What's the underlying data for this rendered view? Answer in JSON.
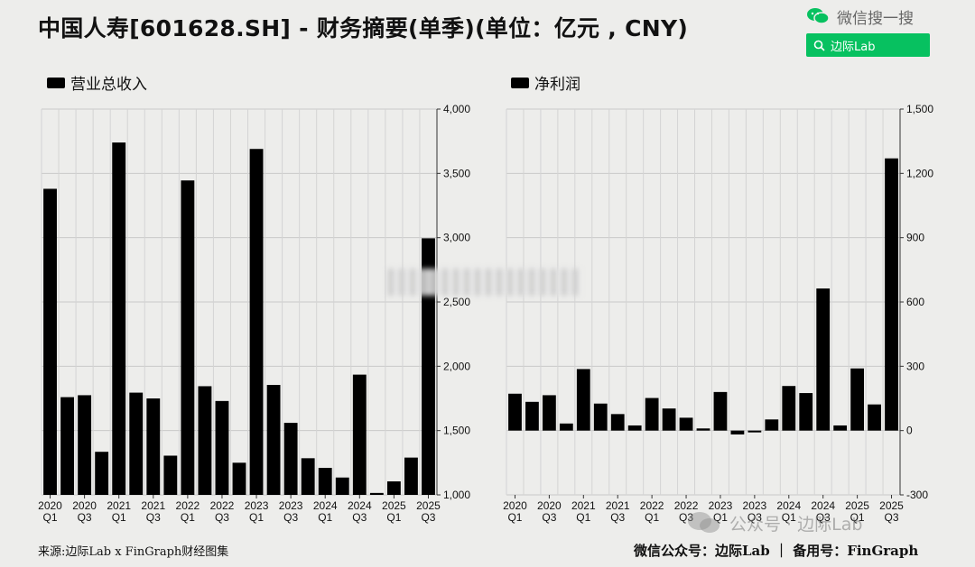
{
  "title": "中国人寿[601628.SH] - 财务摘要(单季)(单位：亿元 , CNY)",
  "wechat_search": {
    "text": "微信搜一搜",
    "button_label": "边际Lab"
  },
  "footer": {
    "source": "来源:边际Lab x FinGraph财经图集",
    "right": "微信公众号：边际Lab  ｜  备用号：FinGraph"
  },
  "watermark": "公众号 · 边际Lab",
  "colors": {
    "bar": "#000000",
    "background": "#ededeb",
    "grid": "#c9c9c9",
    "wechat_green": "#07c160"
  },
  "chart_data": [
    {
      "type": "bar",
      "legend": "营业总收入",
      "categories": [
        "2020 Q1",
        "2020 Q2",
        "2020 Q3",
        "2020 Q4",
        "2021 Q1",
        "2021 Q2",
        "2021 Q3",
        "2021 Q4",
        "2022 Q1",
        "2022 Q2",
        "2022 Q3",
        "2022 Q4",
        "2023 Q1",
        "2023 Q2",
        "2023 Q3",
        "2023 Q4",
        "2024 Q1",
        "2024 Q2",
        "2024 Q3",
        "2024 Q4",
        "2025 Q1",
        "2025 Q2",
        "2025 Q3"
      ],
      "values": [
        3380,
        1760,
        1775,
        1335,
        3740,
        1795,
        1750,
        1305,
        3445,
        1845,
        1730,
        1250,
        3690,
        1855,
        1560,
        1285,
        1210,
        1135,
        1935,
        1015,
        1105,
        1290,
        2995
      ],
      "ylim": [
        1000,
        4000
      ],
      "yticks": [
        "1,000",
        "1,500",
        "2,000",
        "2,500",
        "3,000",
        "3,500",
        "4,000"
      ],
      "xtick_labels": [
        [
          "2020",
          "Q1"
        ],
        [
          "2020",
          "Q3"
        ],
        [
          "2021",
          "Q1"
        ],
        [
          "2021",
          "Q3"
        ],
        [
          "2022",
          "Q1"
        ],
        [
          "2022",
          "Q3"
        ],
        [
          "2023",
          "Q1"
        ],
        [
          "2023",
          "Q3"
        ],
        [
          "2024",
          "Q1"
        ],
        [
          "2024",
          "Q3"
        ],
        [
          "2025",
          "Q1"
        ],
        [
          "2025",
          "Q3"
        ]
      ],
      "grid": true
    },
    {
      "type": "bar",
      "legend": "净利润",
      "categories": [
        "2020 Q1",
        "2020 Q2",
        "2020 Q3",
        "2020 Q4",
        "2021 Q1",
        "2021 Q2",
        "2021 Q3",
        "2021 Q4",
        "2022 Q1",
        "2022 Q2",
        "2022 Q3",
        "2022 Q4",
        "2023 Q1",
        "2023 Q2",
        "2023 Q3",
        "2023 Q4",
        "2024 Q1",
        "2024 Q2",
        "2024 Q3",
        "2024 Q4",
        "2025 Q1",
        "2025 Q2",
        "2025 Q3"
      ],
      "values": [
        172,
        134,
        165,
        33,
        287,
        126,
        77,
        24,
        152,
        103,
        60,
        10,
        180,
        -18,
        -5,
        52,
        208,
        175,
        663,
        24,
        290,
        122,
        1270
      ],
      "ylim": [
        -300,
        1500
      ],
      "yticks": [
        "-300",
        "0",
        "300",
        "600",
        "900",
        "1,200",
        "1,500"
      ],
      "xtick_labels": [
        [
          "2020",
          "Q1"
        ],
        [
          "2020",
          "Q3"
        ],
        [
          "2021",
          "Q1"
        ],
        [
          "2021",
          "Q3"
        ],
        [
          "2022",
          "Q1"
        ],
        [
          "2022",
          "Q3"
        ],
        [
          "2023",
          "Q1"
        ],
        [
          "2023",
          "Q3"
        ],
        [
          "2024",
          "Q1"
        ],
        [
          "2024",
          "Q3"
        ],
        [
          "2025",
          "Q1"
        ],
        [
          "2025",
          "Q3"
        ]
      ],
      "grid": true
    }
  ]
}
